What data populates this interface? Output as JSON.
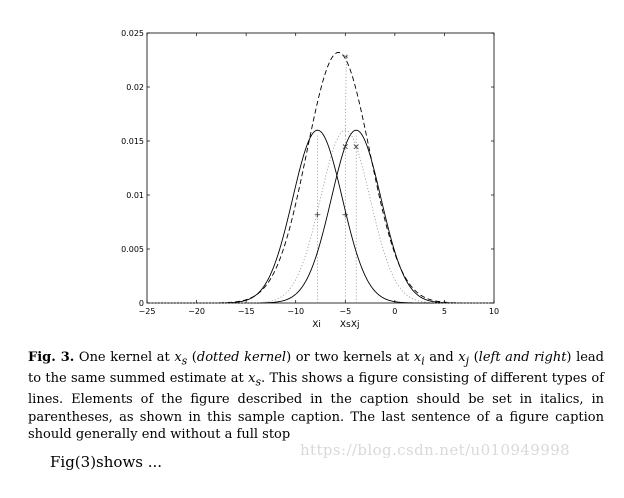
{
  "chart_data": {
    "type": "line",
    "title": "",
    "xlabel": "",
    "ylabel": "",
    "xlim": [
      -25,
      10
    ],
    "ylim": [
      0,
      0.025
    ],
    "x_ticks": [
      "−25",
      "−20",
      "−15",
      "−10",
      "−5",
      "0",
      "5",
      "10"
    ],
    "x_tick_values": [
      -25,
      -20,
      -15,
      -10,
      -5,
      0,
      5,
      10
    ],
    "y_ticks": [
      "0",
      "0.005",
      "0.01",
      "0.015",
      "0.02",
      "0.025"
    ],
    "y_tick_values": [
      0,
      0.005,
      0.01,
      0.015,
      0.02,
      0.025
    ],
    "point_labels": [
      {
        "text": "Xi",
        "x": -7.9
      },
      {
        "text": "Xs",
        "x": -5.0
      },
      {
        "text": "Xj",
        "x": -4.0
      }
    ],
    "series": [
      {
        "style": "solid",
        "mean": -7.8,
        "sd": 2.5,
        "peak": 0.016
      },
      {
        "style": "solid",
        "mean": -3.9,
        "sd": 2.5,
        "peak": 0.016
      },
      {
        "style": "dashed",
        "mean": -5.7,
        "sd": 3.16,
        "peak": 0.0232
      },
      {
        "style": "dotted",
        "mean": -5.0,
        "sd": 2.5,
        "peak": 0.016
      }
    ],
    "markers": [
      {
        "symbol": "*",
        "x": -4.9,
        "y": 0.0227
      },
      {
        "symbol": "×",
        "x": -5.0,
        "y": 0.0145
      },
      {
        "symbol": "×",
        "x": -3.9,
        "y": 0.0145
      },
      {
        "symbol": "+",
        "x": -7.8,
        "y": 0.0082
      },
      {
        "symbol": "+",
        "x": -5.0,
        "y": 0.0082
      }
    ],
    "vlines": [
      -7.8,
      -5.0,
      -3.9
    ]
  },
  "caption": {
    "label": "Fig. 3.",
    "text_1": "One kernel at ",
    "xs_sym": "x",
    "xs_sub": "s",
    "text_2": " (",
    "italic_1": "dotted kernel",
    "text_3": ") or two kernels at ",
    "xi_sym": "x",
    "xi_sub": "i",
    "text_4": " and ",
    "xj_sym": "x",
    "xj_sub": "j",
    "text_5": " (",
    "italic_2": "left and right",
    "text_6": ") lead to the same summed estimate at ",
    "xs2_sym": "x",
    "xs2_sub": "s",
    "text_7": ". This shows a figure consisting of different types of lines. Elements of the figure described in the caption should be set in italics, in parentheses, as shown in this sample caption. The last sentence of a figure caption should generally end without a full stop"
  },
  "watermark": "https://blog.csdn.net/u010949998",
  "body_text": "Fig(3)shows ..."
}
